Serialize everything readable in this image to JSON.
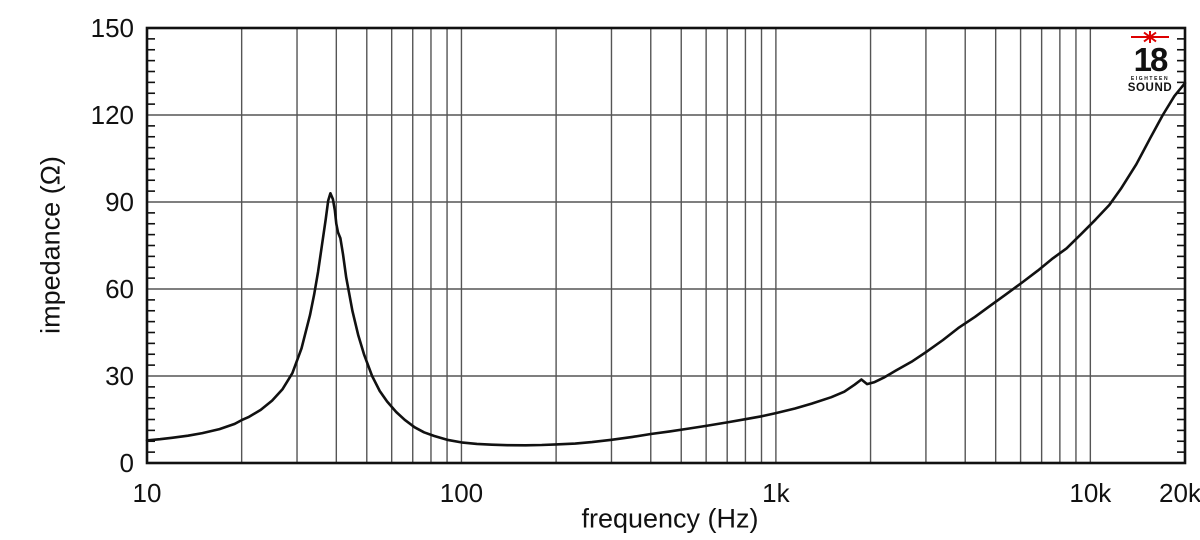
{
  "chart_data": {
    "type": "line",
    "title": "",
    "xlabel": "frequency (Hz)",
    "ylabel": "impedance (Ω)",
    "x_scale": "log",
    "xlim": [
      10,
      20000
    ],
    "ylim": [
      0,
      150
    ],
    "grid": "on",
    "legend": "none",
    "x_ticks": [
      {
        "value": 10,
        "label": "10"
      },
      {
        "value": 100,
        "label": "100"
      },
      {
        "value": 1000,
        "label": "1k"
      },
      {
        "value": 10000,
        "label": "10k"
      },
      {
        "value": 20000,
        "label": "20k"
      }
    ],
    "y_ticks": [
      {
        "value": 0,
        "label": "0"
      },
      {
        "value": 30,
        "label": "30"
      },
      {
        "value": 60,
        "label": "60"
      },
      {
        "value": 90,
        "label": "90"
      },
      {
        "value": 120,
        "label": "120"
      },
      {
        "value": 150,
        "label": "150"
      }
    ],
    "colors": {
      "curve": "#111111",
      "grid": "#555555",
      "axis": "#111111",
      "background": "#ffffff"
    },
    "series": [
      {
        "name": "impedance",
        "points": [
          [
            10,
            7.8
          ],
          [
            11,
            8.2
          ],
          [
            12,
            8.7
          ],
          [
            13.5,
            9.4
          ],
          [
            15,
            10.3
          ],
          [
            17,
            11.7
          ],
          [
            19,
            13.5
          ],
          [
            20,
            14.8
          ],
          [
            21,
            15.8
          ],
          [
            23,
            18.3
          ],
          [
            25,
            21.5
          ],
          [
            27,
            25.5
          ],
          [
            29,
            31
          ],
          [
            31,
            39.5
          ],
          [
            33,
            51
          ],
          [
            34,
            58
          ],
          [
            35,
            66
          ],
          [
            36,
            75
          ],
          [
            37,
            84
          ],
          [
            37.7,
            90.5
          ],
          [
            38.3,
            93
          ],
          [
            39,
            91
          ],
          [
            39.6,
            87
          ],
          [
            40,
            82.5
          ],
          [
            40.5,
            79.5
          ],
          [
            41.2,
            77.5
          ],
          [
            42,
            72
          ],
          [
            43,
            64
          ],
          [
            45,
            52.5
          ],
          [
            47,
            44
          ],
          [
            49,
            37.5
          ],
          [
            52,
            30
          ],
          [
            55,
            24.8
          ],
          [
            58,
            21.2
          ],
          [
            62,
            17.6
          ],
          [
            66,
            14.9
          ],
          [
            71,
            12.3
          ],
          [
            76,
            10.6
          ],
          [
            82,
            9.3
          ],
          [
            90,
            8
          ],
          [
            100,
            7.1
          ],
          [
            112,
            6.6
          ],
          [
            125,
            6.3
          ],
          [
            140,
            6.15
          ],
          [
            160,
            6.1
          ],
          [
            180,
            6.2
          ],
          [
            200,
            6.4
          ],
          [
            230,
            6.7
          ],
          [
            260,
            7.2
          ],
          [
            300,
            8
          ],
          [
            350,
            9
          ],
          [
            400,
            10
          ],
          [
            460,
            10.9
          ],
          [
            530,
            11.9
          ],
          [
            600,
            12.8
          ],
          [
            700,
            14
          ],
          [
            800,
            15.1
          ],
          [
            900,
            16.1
          ],
          [
            1000,
            17.2
          ],
          [
            1150,
            18.8
          ],
          [
            1300,
            20.5
          ],
          [
            1500,
            22.7
          ],
          [
            1650,
            24.6
          ],
          [
            1780,
            27
          ],
          [
            1870,
            28.8
          ],
          [
            1950,
            27.2
          ],
          [
            2060,
            27.9
          ],
          [
            2200,
            29.4
          ],
          [
            2400,
            31.8
          ],
          [
            2700,
            34.9
          ],
          [
            3000,
            38.2
          ],
          [
            3400,
            42.4
          ],
          [
            3800,
            46.5
          ],
          [
            4300,
            50.4
          ],
          [
            4800,
            54.2
          ],
          [
            5400,
            58.2
          ],
          [
            6100,
            62.4
          ],
          [
            6800,
            66.3
          ],
          [
            7600,
            70.6
          ],
          [
            8400,
            74
          ],
          [
            9400,
            79.2
          ],
          [
            10400,
            84
          ],
          [
            11500,
            89
          ],
          [
            12500,
            94.5
          ],
          [
            14000,
            103
          ],
          [
            15500,
            112
          ],
          [
            17000,
            120
          ],
          [
            18500,
            126.5
          ],
          [
            20000,
            131
          ]
        ]
      }
    ]
  },
  "logo": {
    "number": "18",
    "brand_top": "EIGHTEEN",
    "brand_bottom": "SOUND",
    "star_color": "#dd0000"
  }
}
